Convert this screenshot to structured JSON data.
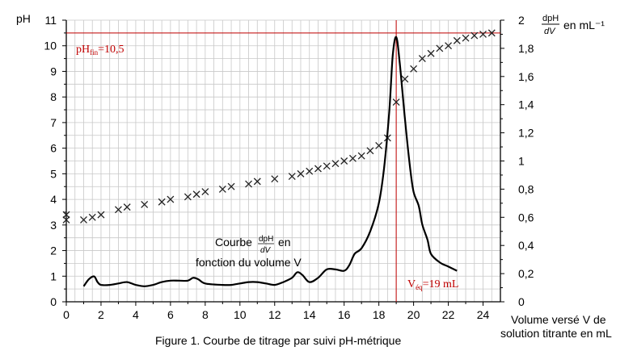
{
  "chart_data": {
    "type": "scatter",
    "caption": "Figure 1. Courbe de titrage par suivi pH-métrique",
    "xlabel_line1": "Volume versé V de",
    "xlabel_line2": "solution titrante en mL",
    "ylabel_left": "pH",
    "ylabel_right_num": "dpH",
    "ylabel_right_den": "dV",
    "ylabel_right_unit": "en mL⁻¹",
    "xlim": [
      0,
      25
    ],
    "ylim_left": [
      0,
      11
    ],
    "ylim_right": [
      0,
      2
    ],
    "x_ticks": [
      "0",
      "2",
      "4",
      "6",
      "8",
      "10",
      "12",
      "14",
      "16",
      "18",
      "20",
      "22",
      "24"
    ],
    "y_left_ticks": [
      "0",
      "1",
      "2",
      "3",
      "4",
      "5",
      "6",
      "7",
      "8",
      "9",
      "10",
      "11"
    ],
    "y_right_ticks": [
      "0",
      "0,2",
      "0,4",
      "0,6",
      "0,8",
      "1",
      "1,2",
      "1,4",
      "1,6",
      "1,8",
      "2"
    ],
    "grid": true,
    "annotations": {
      "ph_fin": "pHfin=10,5",
      "ph_fin_main": "pH",
      "ph_fin_sub": "fin",
      "ph_fin_value": "=10,5",
      "ph_fin_level": 10.5,
      "veq_main": "V",
      "veq_sub": "éq",
      "veq_value": "=19 mL",
      "veq_x": 19,
      "curve_label_prefix": "Courbe",
      "curve_label_frac_num": "dpH",
      "curve_label_frac_den": "dV",
      "curve_label_suffix": "en",
      "curve_label_line2": "fonction du volume V"
    },
    "series": [
      {
        "marker": "x",
        "axis": "left",
        "x": [
          0,
          0,
          1,
          1.5,
          2,
          3,
          3.5,
          4.5,
          5.5,
          6,
          7,
          7.5,
          8,
          9,
          9.5,
          10.5,
          11,
          12,
          13,
          13.5,
          14,
          14.5,
          15,
          15.5,
          16,
          16.5,
          17,
          17.5,
          18,
          18.5,
          19,
          19.5,
          20,
          20.5,
          21,
          21.5,
          22,
          22.5,
          23,
          23.5,
          24,
          24.5
        ],
        "y": [
          3.4,
          3.2,
          3.2,
          3.3,
          3.4,
          3.6,
          3.7,
          3.8,
          3.9,
          4.0,
          4.1,
          4.2,
          4.3,
          4.4,
          4.5,
          4.6,
          4.7,
          4.8,
          4.9,
          5.0,
          5.1,
          5.2,
          5.3,
          5.4,
          5.5,
          5.6,
          5.7,
          5.9,
          6.1,
          6.4,
          7.8,
          8.7,
          9.1,
          9.5,
          9.7,
          9.9,
          10.0,
          10.2,
          10.3,
          10.4,
          10.45,
          10.5
        ]
      },
      {
        "line": true,
        "axis": "right",
        "x": [
          1,
          1.3,
          1.6,
          1.8,
          2,
          2.5,
          3,
          3.5,
          4,
          4.5,
          5,
          5.5,
          6,
          6.5,
          7,
          7.3,
          7.6,
          8,
          9,
          9.5,
          10,
          10.5,
          11,
          11.5,
          12,
          12.5,
          13,
          13.3,
          13.6,
          14,
          14.5,
          15,
          15.5,
          16,
          16.3,
          16.6,
          17,
          17.5,
          18,
          18.3,
          18.6,
          18.8,
          19,
          19.2,
          19.5,
          19.8,
          20,
          20.3,
          20.5,
          20.8,
          21,
          21.5,
          22,
          22.5
        ],
        "y": [
          0.11,
          0.16,
          0.18,
          0.14,
          0.12,
          0.12,
          0.13,
          0.14,
          0.12,
          0.11,
          0.12,
          0.14,
          0.15,
          0.15,
          0.15,
          0.17,
          0.16,
          0.13,
          0.12,
          0.12,
          0.13,
          0.14,
          0.14,
          0.13,
          0.12,
          0.14,
          0.17,
          0.21,
          0.19,
          0.14,
          0.17,
          0.23,
          0.23,
          0.22,
          0.26,
          0.34,
          0.38,
          0.5,
          0.7,
          0.95,
          1.35,
          1.75,
          1.88,
          1.7,
          1.3,
          0.95,
          0.78,
          0.68,
          0.55,
          0.44,
          0.34,
          0.28,
          0.25,
          0.22
        ]
      }
    ]
  }
}
